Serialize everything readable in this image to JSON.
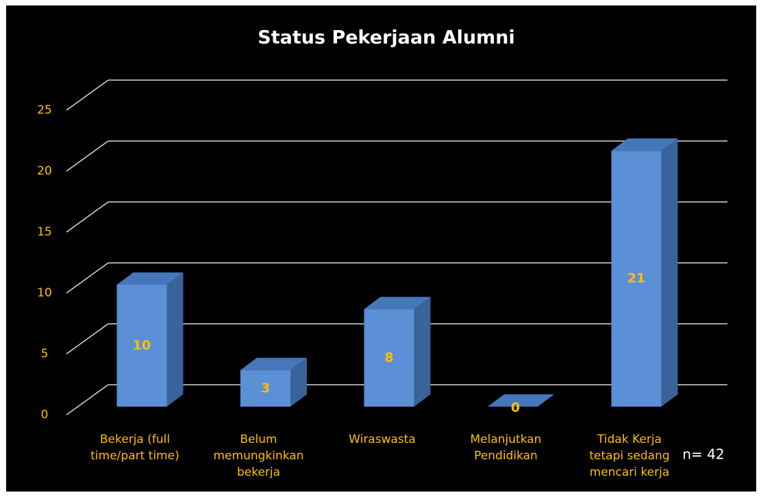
{
  "chart_data": {
    "type": "bar3d",
    "title": "Status Pekerjaan Alumni",
    "categories": [
      "Bekerja (full\ntime/part time)",
      "Belum\nmemungkinkan\nbekerja",
      "Wiraswasta",
      "Melanjutkan\nPendidikan",
      "Tidak Kerja\ntetapi sedang\nmencari kerja"
    ],
    "values": [
      10,
      3,
      8,
      0,
      21
    ],
    "color": "#5B8FD6",
    "ylim": [
      0,
      25
    ],
    "yticks": [
      0,
      5,
      10,
      15,
      20,
      25
    ],
    "grid": true,
    "annotation": "n= 42"
  }
}
